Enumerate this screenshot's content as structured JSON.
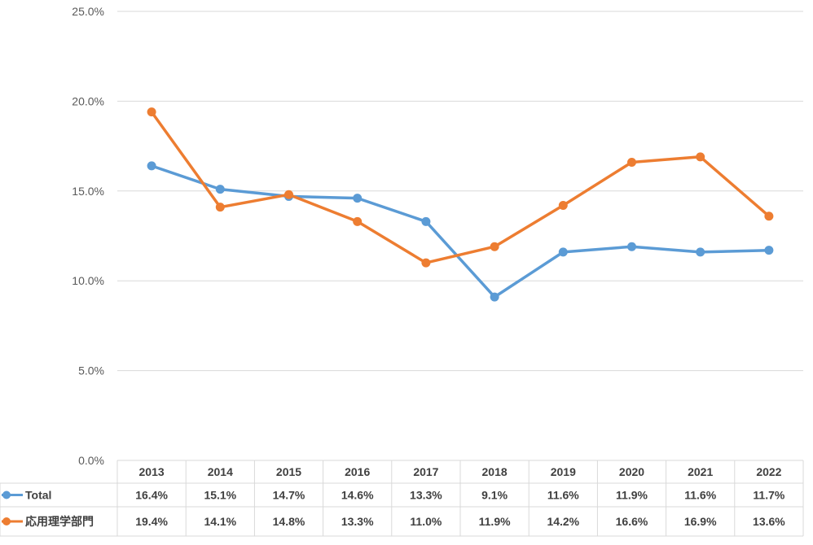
{
  "chart_data": {
    "type": "line",
    "title": "",
    "xlabel": "",
    "ylabel": "",
    "categories": [
      "2013",
      "2014",
      "2015",
      "2016",
      "2017",
      "2018",
      "2019",
      "2020",
      "2021",
      "2022"
    ],
    "y_ticks": [
      "0.0%",
      "5.0%",
      "10.0%",
      "15.0%",
      "20.0%",
      "25.0%"
    ],
    "ylim": [
      0,
      25
    ],
    "grid": true,
    "legend": "data-table",
    "series": [
      {
        "name": "Total",
        "color": "#5B9BD5",
        "values": [
          16.4,
          15.1,
          14.7,
          14.6,
          13.3,
          9.1,
          11.6,
          11.9,
          11.6,
          11.7
        ],
        "labels": [
          "16.4%",
          "15.1%",
          "14.7%",
          "14.6%",
          "13.3%",
          "9.1%",
          "11.6%",
          "11.9%",
          "11.6%",
          "11.7%"
        ]
      },
      {
        "name": "応用理学部門",
        "color": "#ED7D31",
        "values": [
          19.4,
          14.1,
          14.8,
          13.3,
          11.0,
          11.9,
          14.2,
          16.6,
          16.9,
          13.6
        ],
        "labels": [
          "19.4%",
          "14.1%",
          "14.8%",
          "13.3%",
          "11.0%",
          "11.9%",
          "14.2%",
          "16.6%",
          "16.9%",
          "13.6%"
        ]
      }
    ]
  }
}
